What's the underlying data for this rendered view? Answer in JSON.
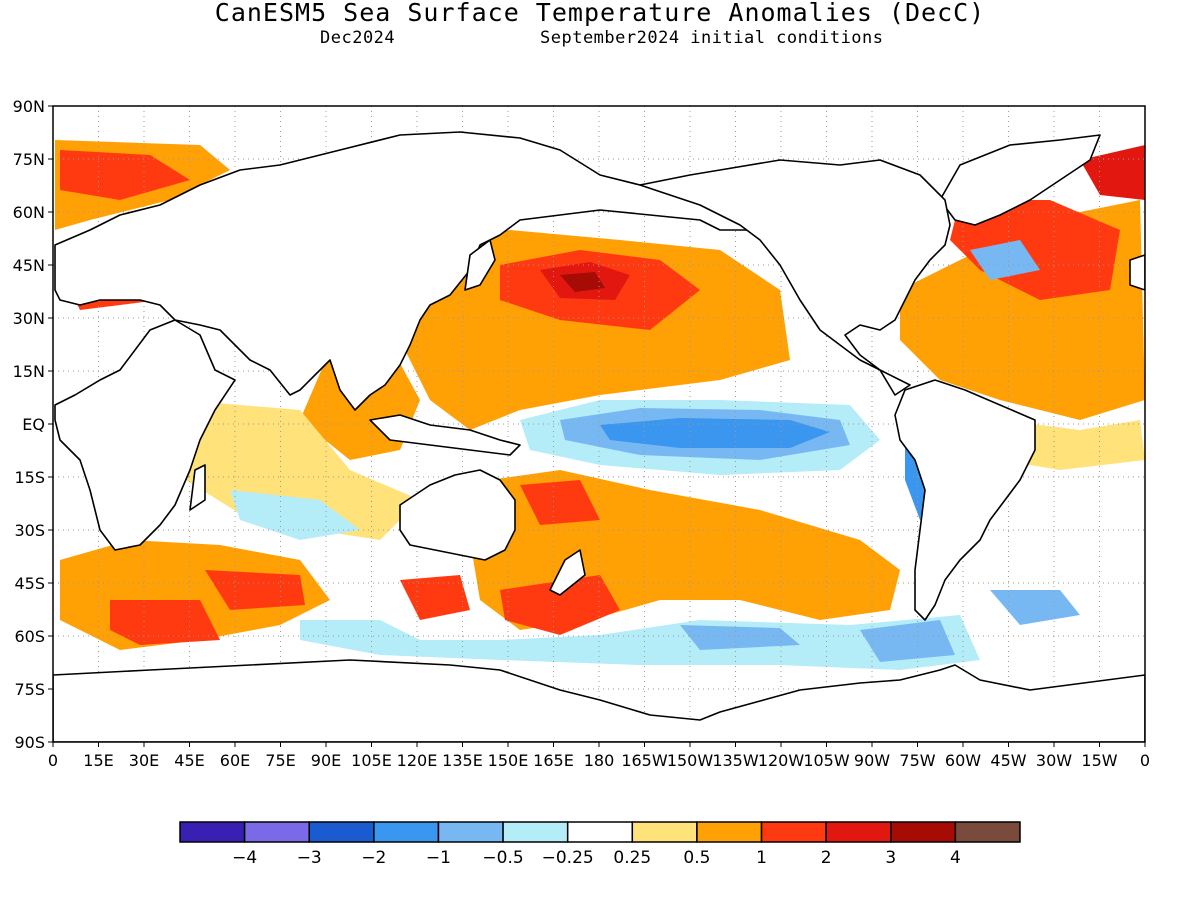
{
  "header": {
    "title": "CanESM5 Sea Surface Temperature Anomalies (DecC)",
    "valid_month": "Dec2024",
    "init_conditions": "September2024 initial conditions"
  },
  "map": {
    "lat_labels": [
      "90N",
      "75N",
      "60N",
      "45N",
      "30N",
      "15N",
      "EQ",
      "15S",
      "30S",
      "45S",
      "60S",
      "75S",
      "90S"
    ],
    "lon_labels": [
      "0",
      "15E",
      "30E",
      "45E",
      "60E",
      "75E",
      "90E",
      "105E",
      "120E",
      "135E",
      "150E",
      "165E",
      "180",
      "165W",
      "150W",
      "135W",
      "120W",
      "105W",
      "90W",
      "75W",
      "60W",
      "45W",
      "30W",
      "15W",
      "0"
    ]
  },
  "legend": {
    "colors": [
      "#3a1fb3",
      "#7b6ae8",
      "#1a5ccf",
      "#3b96ef",
      "#78b8f2",
      "#b4ecf8",
      "#ffffff",
      "#ffe27a",
      "#ffa005",
      "#ff3a10",
      "#e21810",
      "#a60b06",
      "#7a4a3c"
    ],
    "labels": [
      "−4",
      "−3",
      "−2",
      "−1",
      "−0.5",
      "−0.25",
      "0.25",
      "0.5",
      "1",
      "2",
      "3",
      "4"
    ]
  },
  "anomaly_regions": [
    {
      "name": "north-pacific-warm-blob",
      "level": "2 to 4",
      "color": "#e21810"
    },
    {
      "name": "equatorial-pacific-cold-tongue",
      "level": "-1 to -2",
      "color": "#3b96ef"
    },
    {
      "name": "north-atlantic-warm",
      "level": "1 to 2",
      "color": "#ff3a10"
    },
    {
      "name": "south-pacific-warm-band",
      "level": "0.5 to 1",
      "color": "#ffa005"
    },
    {
      "name": "southern-ocean-cool",
      "level": "-0.25 to -1",
      "color": "#78b8f2"
    }
  ]
}
